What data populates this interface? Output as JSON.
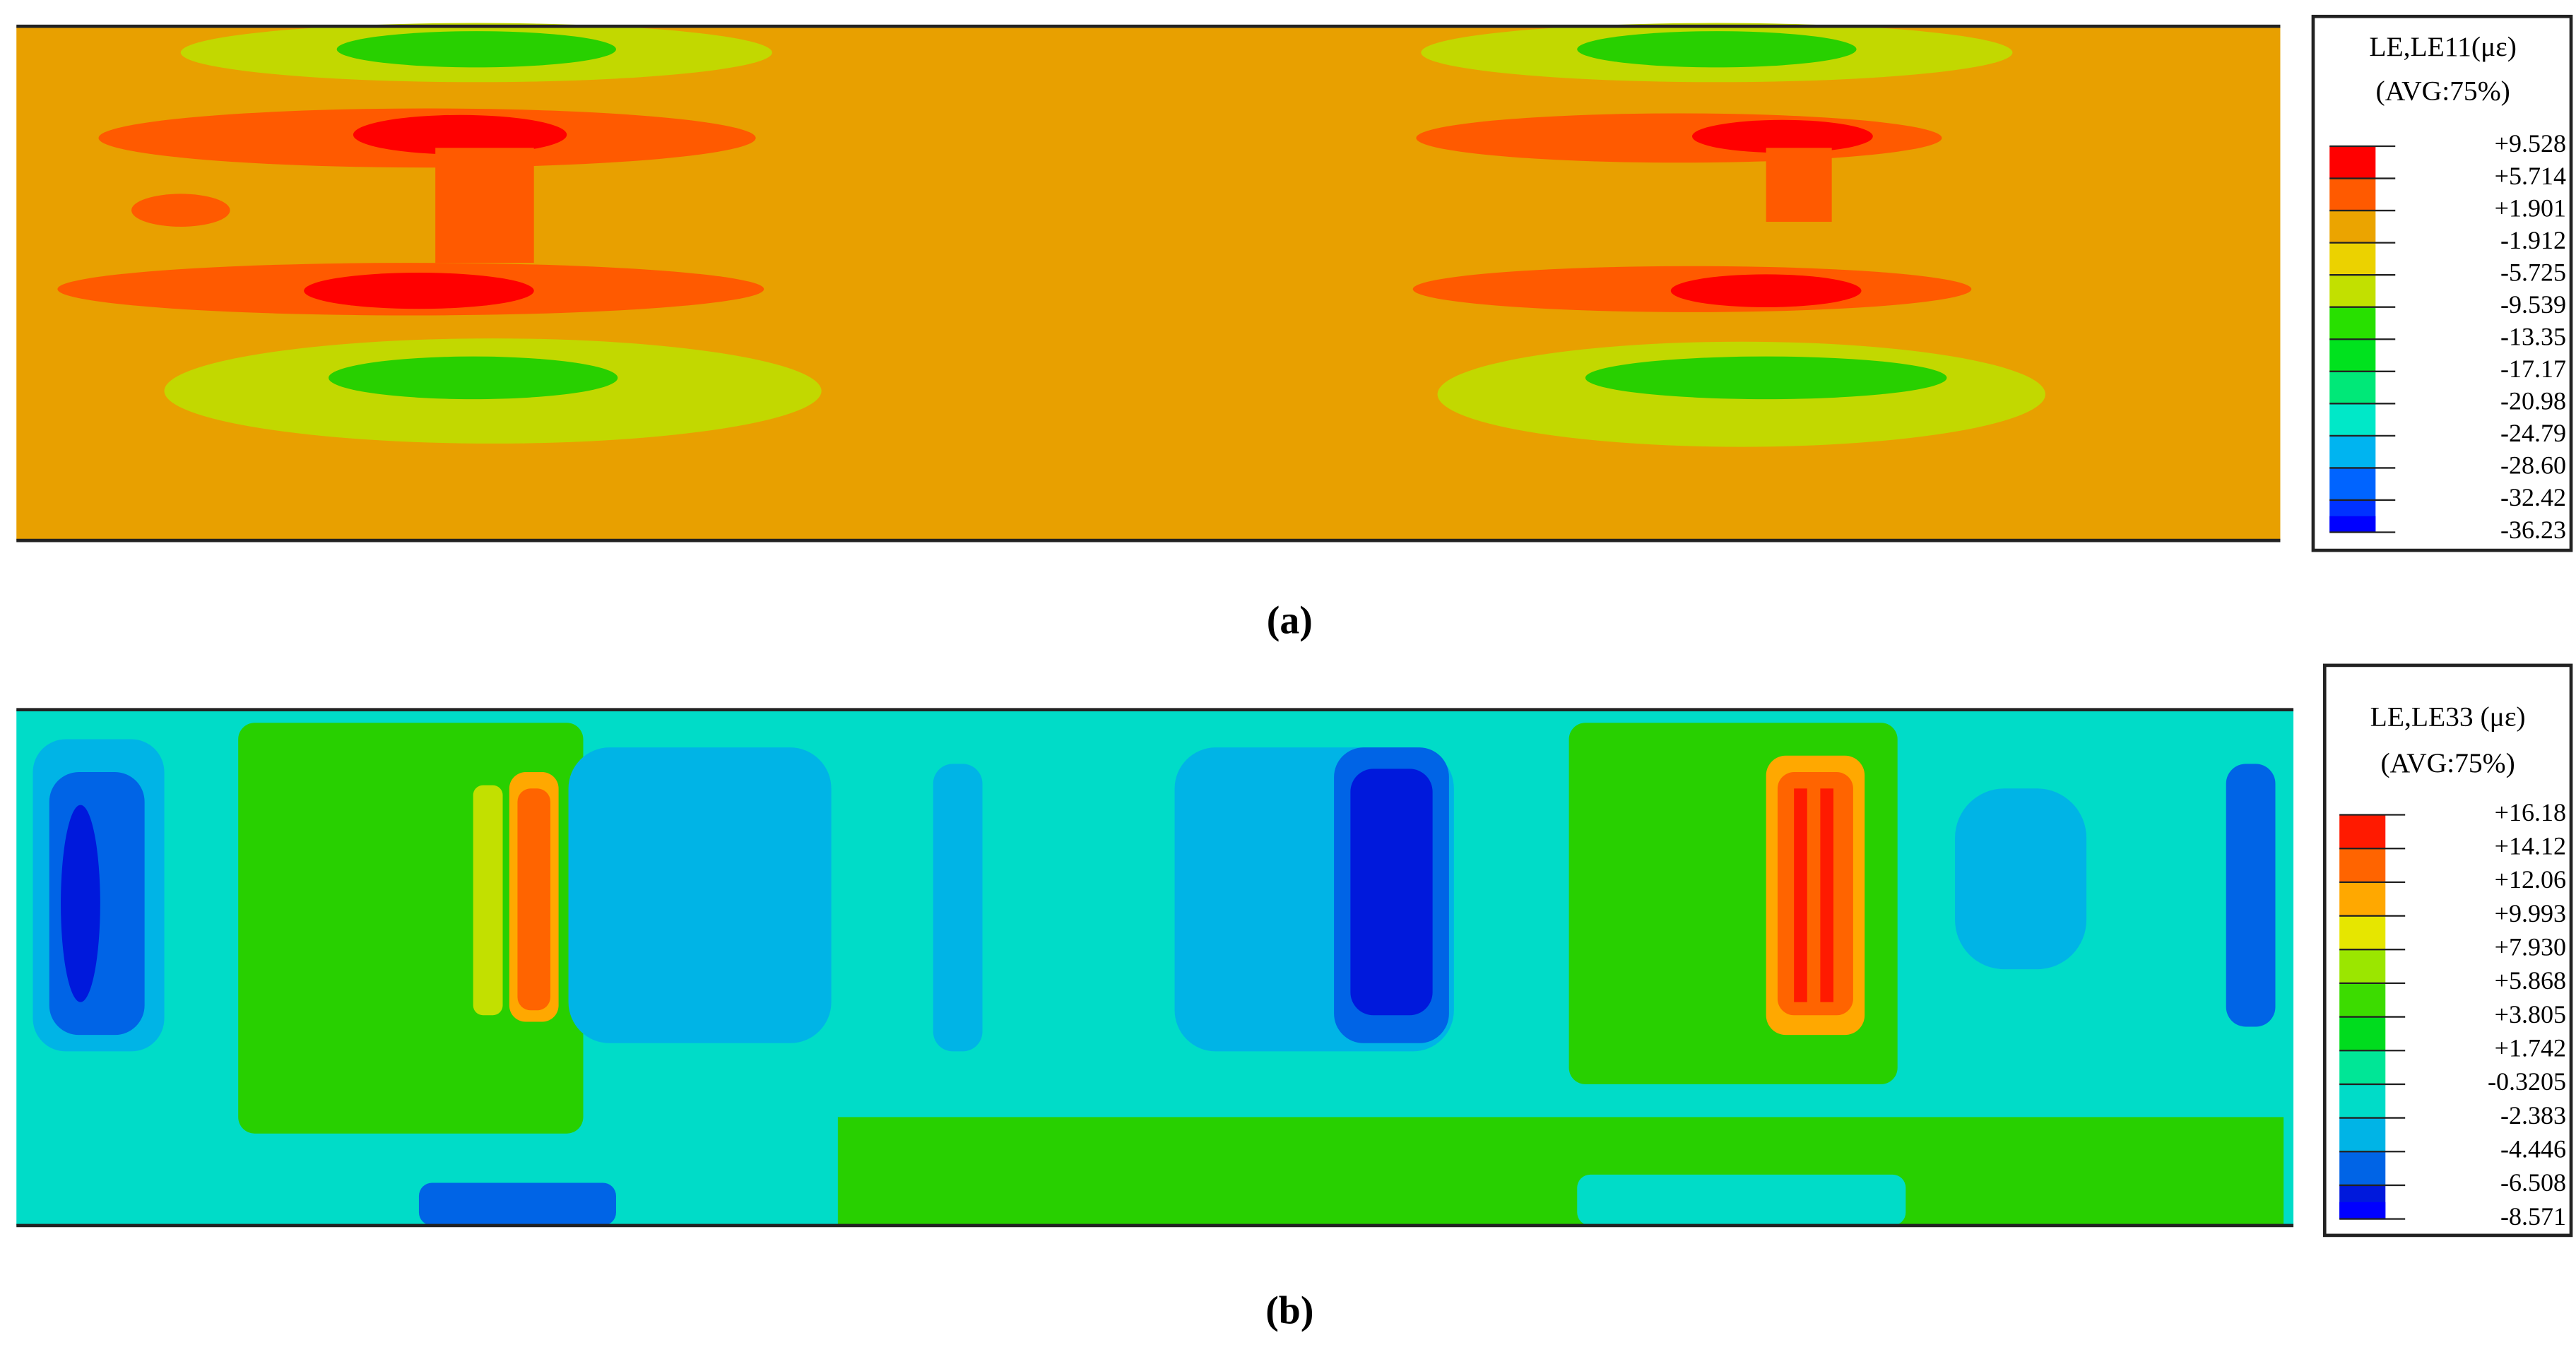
{
  "panels": [
    {
      "caption": "(a)",
      "legend": {
        "title": "LE,LE11(με)",
        "subtitle": "(AVG:75%)",
        "labels": [
          "+9.528",
          "+5.714",
          "+1.901",
          "-1.912",
          "-5.725",
          "-9.539",
          "-13.35",
          "-17.17",
          "-20.98",
          "-24.79",
          "-28.60",
          "-32.42",
          "-36.23"
        ],
        "colors": [
          "#ff0000",
          "#ff5a00",
          "#eba400",
          "#ebd200",
          "#c2e000",
          "#28e000",
          "#00e21e",
          "#00e878",
          "#00e8c8",
          "#00b4f0",
          "#0064ff",
          "#0032ff",
          "#0000ff"
        ]
      }
    },
    {
      "caption": "(b)",
      "legend": {
        "title": "LE,LE33 (με)",
        "subtitle": "(AVG:75%)",
        "labels": [
          "+16.18",
          "+14.12",
          "+12.06",
          "+9.993",
          "+7.930",
          "+5.868",
          "+3.805",
          "+1.742",
          "-0.3205",
          "-2.383",
          "-4.446",
          "-6.508",
          "-8.571"
        ],
        "colors": [
          "#ff1a00",
          "#ff6400",
          "#ffa800",
          "#e6e600",
          "#9be600",
          "#3cdc00",
          "#00dc1e",
          "#00e696",
          "#00dcc8",
          "#00b4e6",
          "#0064e6",
          "#0019dc",
          "#0000ff"
        ]
      }
    }
  ]
}
